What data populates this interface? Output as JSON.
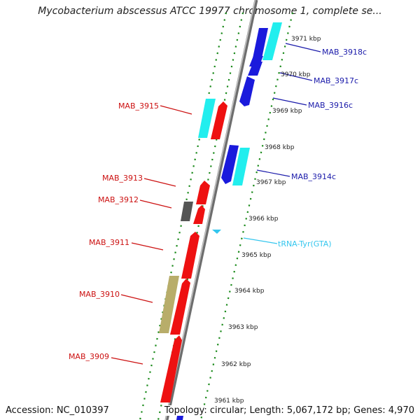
{
  "header": {
    "title": "Mycobacterium abscessus ATCC 19977 chromosome 1, complete se..."
  },
  "footer": {
    "accession": "Accession: NC_010397",
    "topology": "Topology: circular; Length: 5,067,172 bp; Genes: 4,970"
  },
  "colors": {
    "red": "#ee1111",
    "blue": "#1a1adc",
    "cyan": "#22eeee",
    "olive": "#b8ad6a",
    "gray": "#555555",
    "green": "#1a8a1a",
    "trna": "#33c6ee",
    "label_red": "#cc1111",
    "label_blue": "#1a1aaa"
  },
  "ticks": [
    "3971 kbp",
    "3970 kbp",
    "3969 kbp",
    "3968 kbp",
    "3967 kbp",
    "3966 kbp",
    "3965 kbp",
    "3964 kbp",
    "3963 kbp",
    "3962 kbp",
    "3961 kbp"
  ],
  "genes": [
    {
      "name": "MAB_3909",
      "type": "cds",
      "strand": "+",
      "color": "red"
    },
    {
      "name": "MAB_3910",
      "type": "cds",
      "strand": "+",
      "color": "red"
    },
    {
      "name": "MAB_3911",
      "type": "cds",
      "strand": "+",
      "color": "red"
    },
    {
      "name": "MAB_3912",
      "type": "cds",
      "strand": "+",
      "color": "red"
    },
    {
      "name": "MAB_3913",
      "type": "cds",
      "strand": "+",
      "color": "red"
    },
    {
      "name": "tRNA-Tyr(GTA)",
      "type": "trna",
      "strand": "-",
      "color": "trna"
    },
    {
      "name": "MAB_3914c",
      "type": "cds",
      "strand": "-",
      "color": "blue"
    },
    {
      "name": "MAB_3915",
      "type": "cds",
      "strand": "+",
      "color": "red"
    },
    {
      "name": "MAB_3916c",
      "type": "cds",
      "strand": "-",
      "color": "blue"
    },
    {
      "name": "MAB_3917c",
      "type": "cds",
      "strand": "-",
      "color": "blue"
    },
    {
      "name": "MAB_3918c",
      "type": "cds",
      "strand": "-",
      "color": "blue"
    }
  ]
}
